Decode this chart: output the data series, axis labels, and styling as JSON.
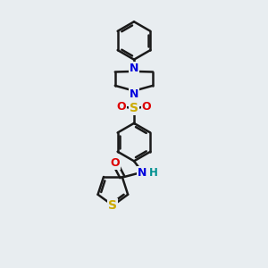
{
  "background_color": "#e8edf0",
  "line_color": "#1a1a1a",
  "bond_width": 1.8,
  "figsize": [
    3.0,
    3.0
  ],
  "dpi": 100,
  "atoms": {
    "N_blue": "#0000dd",
    "O_red": "#dd0000",
    "S_yellow": "#ccaa00",
    "H_teal": "#009090",
    "C_black": "#1a1a1a"
  },
  "xlim": [
    0,
    10
  ],
  "ylim": [
    0,
    10
  ]
}
